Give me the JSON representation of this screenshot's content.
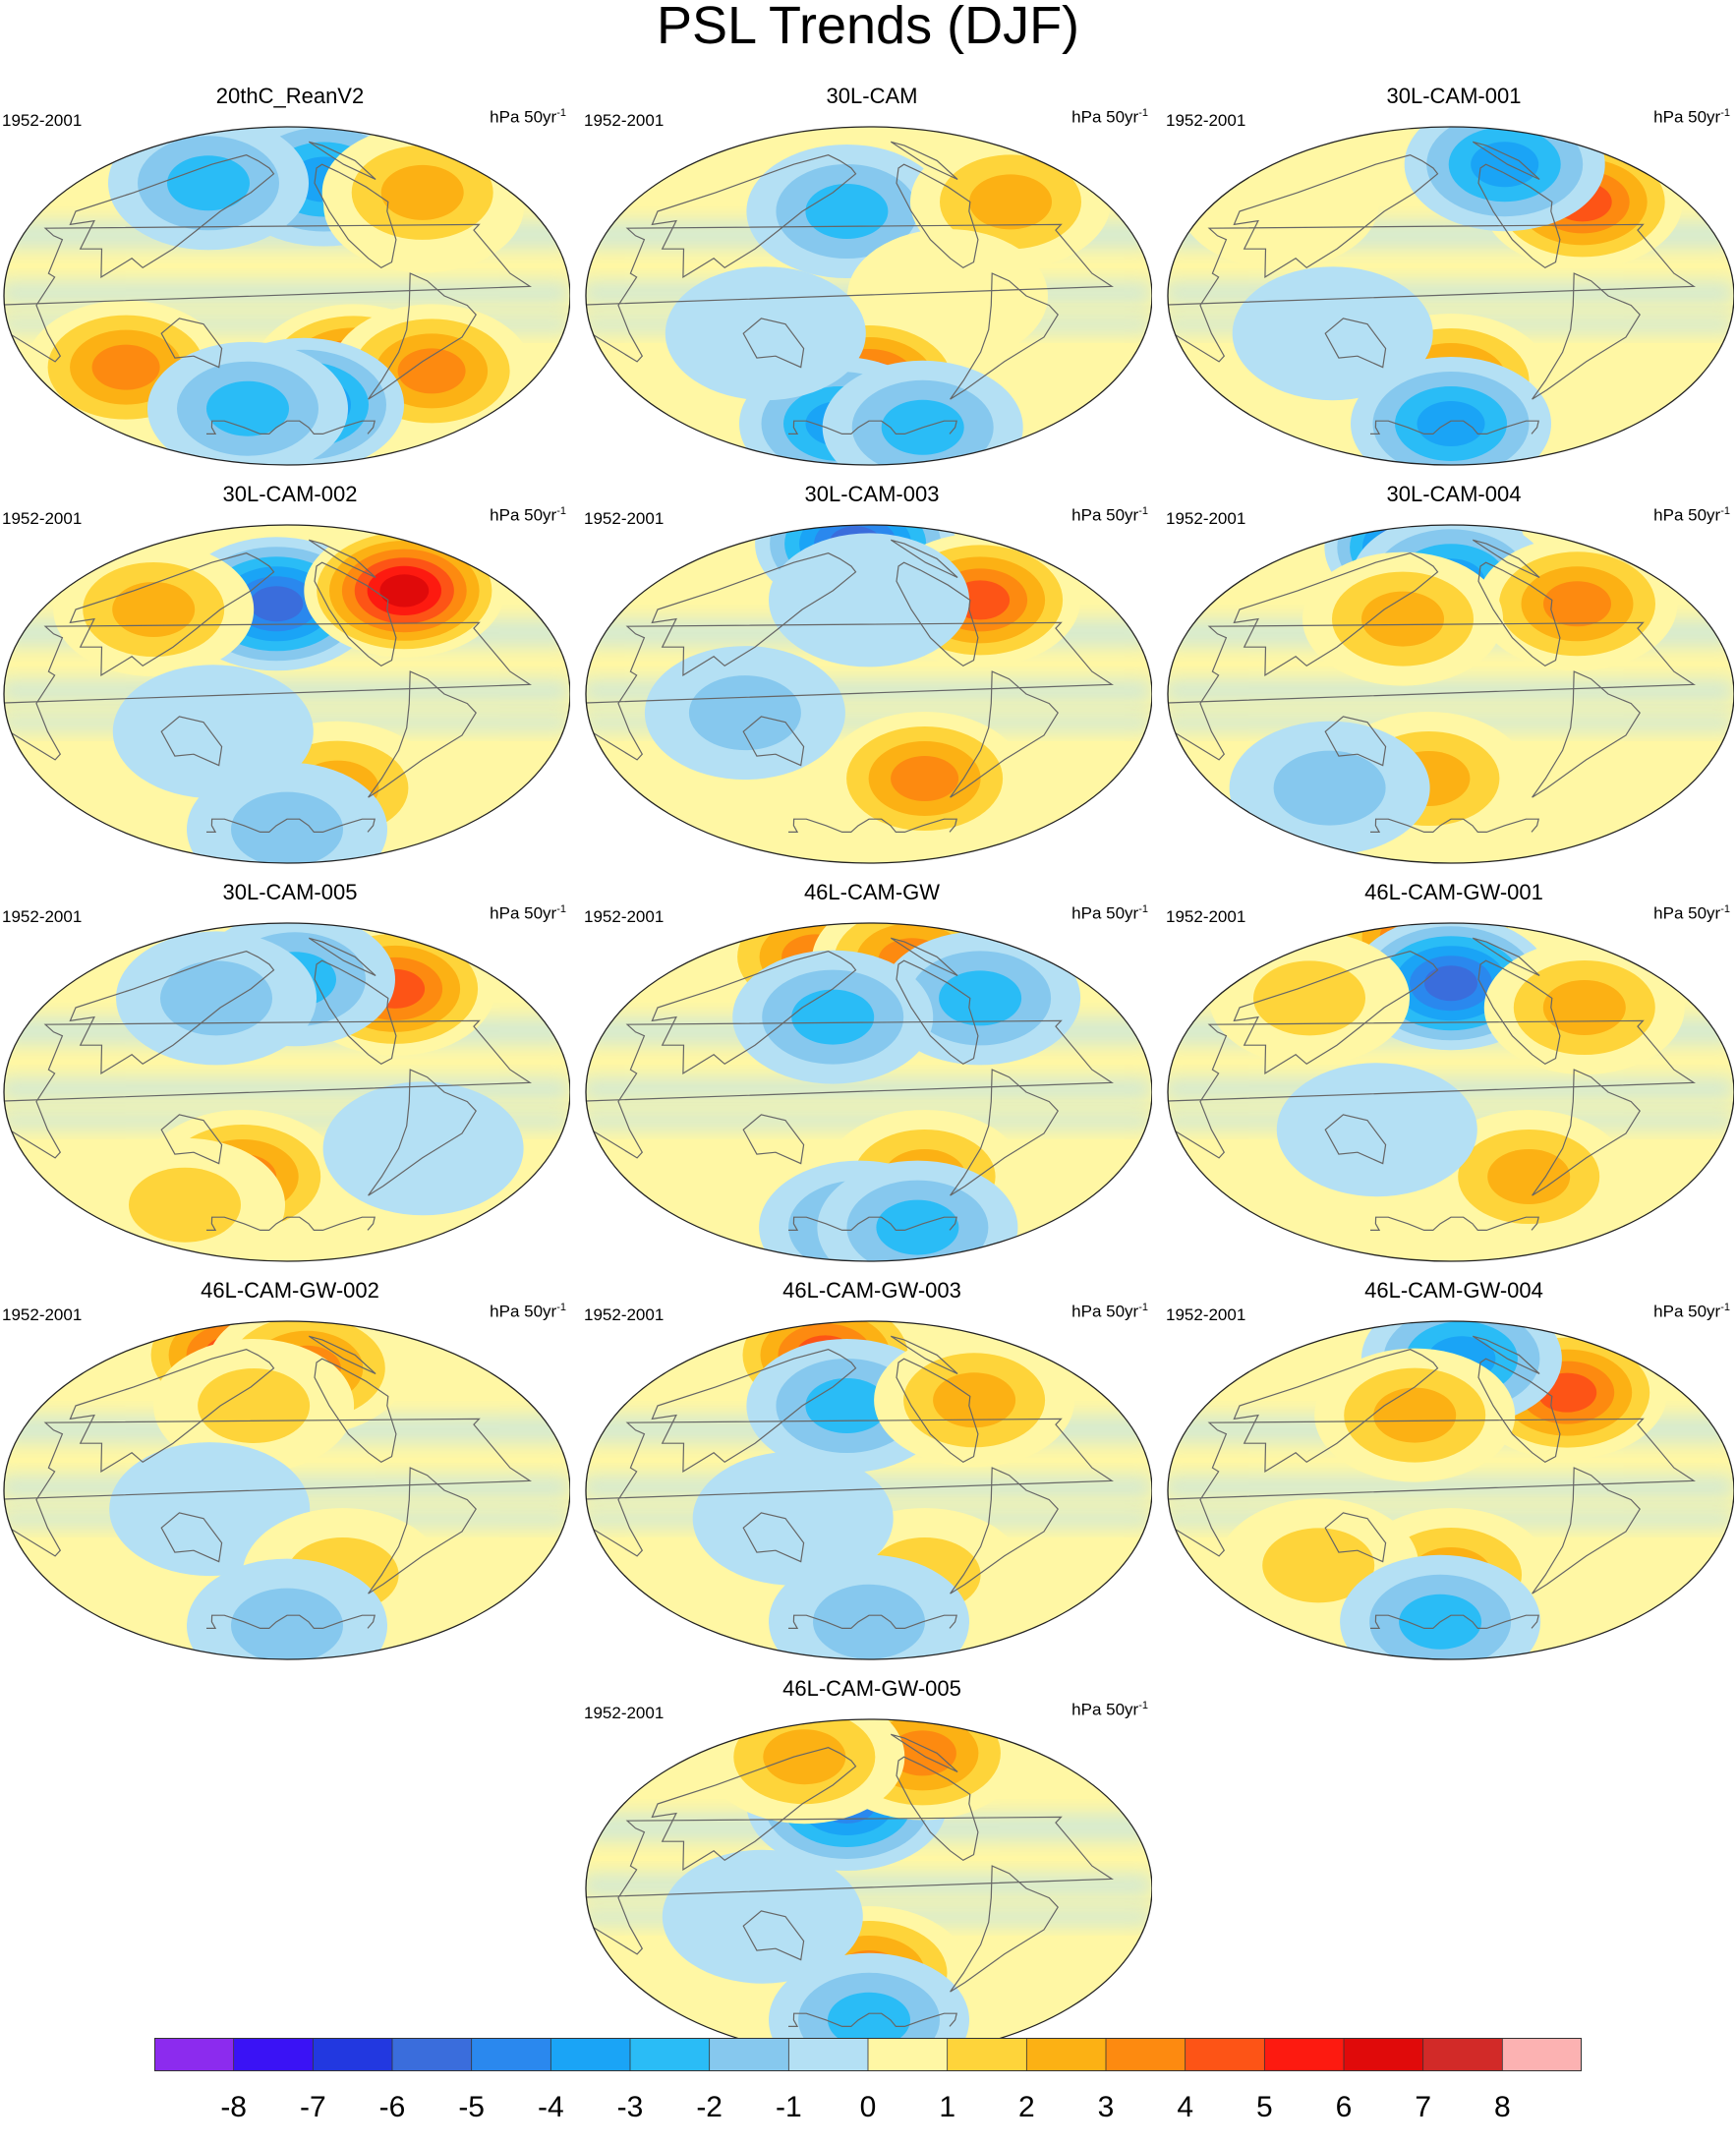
{
  "title": "PSL Trends (DJF)",
  "period": "1952-2001",
  "units_base": "hPa 50yr",
  "units_exp": "-1",
  "panels": [
    {
      "name": "20thC_ReanV2"
    },
    {
      "name": "30L-CAM"
    },
    {
      "name": "30L-CAM-001"
    },
    {
      "name": "30L-CAM-002"
    },
    {
      "name": "30L-CAM-003"
    },
    {
      "name": "30L-CAM-004"
    },
    {
      "name": "30L-CAM-005"
    },
    {
      "name": "46L-CAM-GW"
    },
    {
      "name": "46L-CAM-GW-001"
    },
    {
      "name": "46L-CAM-GW-002"
    },
    {
      "name": "46L-CAM-GW-003"
    },
    {
      "name": "46L-CAM-GW-004"
    },
    {
      "name": "46L-CAM-GW-005"
    }
  ],
  "colorbar": {
    "tick_labels": [
      "-8",
      "-7",
      "-6",
      "-5",
      "-4",
      "-3",
      "-2",
      "-1",
      "0",
      "1",
      "2",
      "3",
      "4",
      "5",
      "6",
      "7",
      "8"
    ],
    "colors": [
      "#8c2bee",
      "#3a12f5",
      "#2238e0",
      "#3a6ddc",
      "#2a88ee",
      "#1aa4f6",
      "#2abcf6",
      "#86c8ee",
      "#b4e0f4",
      "#fff7a4",
      "#fed43a",
      "#fcb114",
      "#fd8a10",
      "#fd5416",
      "#fd1a10",
      "#e00a0a",
      "#d22a28",
      "#fcb2b2"
    ]
  },
  "chart_data": {
    "type": "heatmap",
    "title": "PSL Trends (DJF)",
    "units": "hPa 50yr-1",
    "period": "1952-2001",
    "color_levels": [
      -8,
      -7,
      -6,
      -5,
      -4,
      -3,
      -2,
      -1,
      0,
      1,
      2,
      3,
      4,
      5,
      6,
      7,
      8
    ],
    "panels": [
      {
        "name": "20thC_ReanV2",
        "blobs": [
          {
            "lon": 150,
            "lat": 70,
            "v": -7
          },
          {
            "lon": 200,
            "lat": 68,
            "v": -5
          },
          {
            "lon": 250,
            "lat": 62,
            "v": -4
          },
          {
            "lon": 330,
            "lat": 48,
            "v": 4
          },
          {
            "lon": 350,
            "lat": 55,
            "v": 3
          },
          {
            "lon": 70,
            "lat": -38,
            "v": 4
          },
          {
            "lon": 255,
            "lat": -40,
            "v": 5
          },
          {
            "lon": 320,
            "lat": -40,
            "v": 4
          },
          {
            "lon": 220,
            "lat": -58,
            "v": -5
          },
          {
            "lon": 150,
            "lat": -60,
            "v": -3
          },
          {
            "lon": 100,
            "lat": 60,
            "v": -3
          }
        ]
      },
      {
        "name": "30L-CAM",
        "blobs": [
          {
            "lon": 180,
            "lat": 45,
            "v": -3
          },
          {
            "lon": 340,
            "lat": 50,
            "v": 3
          },
          {
            "lon": 250,
            "lat": 0,
            "v": 1
          },
          {
            "lon": 200,
            "lat": -45,
            "v": 5
          },
          {
            "lon": 150,
            "lat": -68,
            "v": -4
          },
          {
            "lon": 300,
            "lat": -70,
            "v": -3
          },
          {
            "lon": 130,
            "lat": -20,
            "v": -1
          }
        ]
      },
      {
        "name": "30L-CAM-001",
        "blobs": [
          {
            "lon": 330,
            "lat": 50,
            "v": 5
          },
          {
            "lon": 300,
            "lat": 70,
            "v": -4
          },
          {
            "lon": 200,
            "lat": -45,
            "v": 4
          },
          {
            "lon": 200,
            "lat": -68,
            "v": -4
          },
          {
            "lon": 120,
            "lat": -20,
            "v": -1
          },
          {
            "lon": 30,
            "lat": 50,
            "v": 1
          }
        ]
      },
      {
        "name": "30L-CAM-002",
        "blobs": [
          {
            "lon": 190,
            "lat": 48,
            "v": -6
          },
          {
            "lon": 330,
            "lat": 55,
            "v": 7
          },
          {
            "lon": 80,
            "lat": 45,
            "v": 3
          },
          {
            "lon": 250,
            "lat": -50,
            "v": 3
          },
          {
            "lon": 150,
            "lat": -20,
            "v": -1
          },
          {
            "lon": 200,
            "lat": -72,
            "v": -2
          }
        ]
      },
      {
        "name": "30L-CAM-003",
        "blobs": [
          {
            "lon": 150,
            "lat": 80,
            "v": -6
          },
          {
            "lon": 310,
            "lat": 50,
            "v": 5
          },
          {
            "lon": 250,
            "lat": -45,
            "v": 4
          },
          {
            "lon": 120,
            "lat": -10,
            "v": -2
          },
          {
            "lon": 200,
            "lat": 50,
            "v": -1
          }
        ]
      },
      {
        "name": "30L-CAM-004",
        "blobs": [
          {
            "lon": 120,
            "lat": 78,
            "v": -7
          },
          {
            "lon": 200,
            "lat": 60,
            "v": -4
          },
          {
            "lon": 320,
            "lat": 48,
            "v": 4
          },
          {
            "lon": 160,
            "lat": 40,
            "v": 3
          },
          {
            "lon": 180,
            "lat": -45,
            "v": 3
          },
          {
            "lon": 80,
            "lat": -50,
            "v": -2
          }
        ]
      },
      {
        "name": "30L-CAM-005",
        "blobs": [
          {
            "lon": 320,
            "lat": 55,
            "v": 5
          },
          {
            "lon": 210,
            "lat": 60,
            "v": -3
          },
          {
            "lon": 130,
            "lat": 50,
            "v": -2
          },
          {
            "lon": 160,
            "lat": -45,
            "v": 4
          },
          {
            "lon": 70,
            "lat": -60,
            "v": 2
          },
          {
            "lon": 300,
            "lat": -30,
            "v": -1
          }
        ]
      },
      {
        "name": "46L-CAM-GW",
        "blobs": [
          {
            "lon": 90,
            "lat": 72,
            "v": 4
          },
          {
            "lon": 280,
            "lat": 70,
            "v": 4
          },
          {
            "lon": 310,
            "lat": 50,
            "v": -3
          },
          {
            "lon": 170,
            "lat": 40,
            "v": -3
          },
          {
            "lon": 250,
            "lat": -45,
            "v": 3
          },
          {
            "lon": 180,
            "lat": -72,
            "v": -3
          },
          {
            "lon": 300,
            "lat": -72,
            "v": -3
          }
        ]
      },
      {
        "name": "46L-CAM-GW-001",
        "blobs": [
          {
            "lon": 90,
            "lat": 82,
            "v": 5
          },
          {
            "lon": 200,
            "lat": 58,
            "v": -6
          },
          {
            "lon": 320,
            "lat": 45,
            "v": 3
          },
          {
            "lon": 270,
            "lat": -45,
            "v": 3
          },
          {
            "lon": 60,
            "lat": 50,
            "v": 2
          },
          {
            "lon": 150,
            "lat": -20,
            "v": -1
          }
        ]
      },
      {
        "name": "46L-CAM-GW-002",
        "blobs": [
          {
            "lon": 90,
            "lat": 72,
            "v": 5
          },
          {
            "lon": 230,
            "lat": 65,
            "v": 4
          },
          {
            "lon": 170,
            "lat": 45,
            "v": 2
          },
          {
            "lon": 150,
            "lat": -10,
            "v": -1
          },
          {
            "lon": 250,
            "lat": -45,
            "v": 2
          },
          {
            "lon": 200,
            "lat": -72,
            "v": -2
          }
        ]
      },
      {
        "name": "46L-CAM-GW-003",
        "blobs": [
          {
            "lon": 110,
            "lat": 72,
            "v": 5
          },
          {
            "lon": 180,
            "lat": 45,
            "v": -3
          },
          {
            "lon": 300,
            "lat": 48,
            "v": 3
          },
          {
            "lon": 250,
            "lat": -45,
            "v": 2
          },
          {
            "lon": 150,
            "lat": -15,
            "v": -1
          },
          {
            "lon": 200,
            "lat": -70,
            "v": -2
          }
        ]
      },
      {
        "name": "46L-CAM-GW-004",
        "blobs": [
          {
            "lon": 320,
            "lat": 52,
            "v": 5
          },
          {
            "lon": 220,
            "lat": 70,
            "v": -4
          },
          {
            "lon": 170,
            "lat": 40,
            "v": 3
          },
          {
            "lon": 200,
            "lat": -45,
            "v": 3
          },
          {
            "lon": 90,
            "lat": -40,
            "v": 2
          },
          {
            "lon": 180,
            "lat": -70,
            "v": -3
          }
        ]
      },
      {
        "name": "46L-CAM-GW-005",
        "blobs": [
          {
            "lon": 180,
            "lat": 45,
            "v": -5
          },
          {
            "lon": 310,
            "lat": 72,
            "v": 4
          },
          {
            "lon": 80,
            "lat": 70,
            "v": 3
          },
          {
            "lon": 200,
            "lat": -45,
            "v": 4
          },
          {
            "lon": 200,
            "lat": -70,
            "v": -3
          },
          {
            "lon": 130,
            "lat": -15,
            "v": -1
          }
        ]
      }
    ]
  }
}
